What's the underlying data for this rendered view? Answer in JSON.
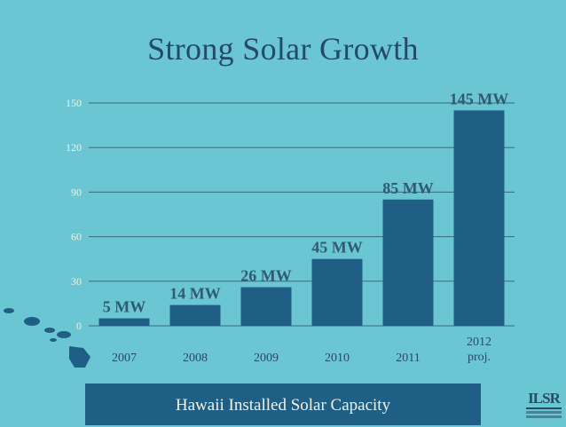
{
  "slide": {
    "title": "Strong Solar Growth",
    "caption": "Hawaii Installed Solar Capacity",
    "logo_text": "ILSR",
    "colors": {
      "background": "#6bc6d3",
      "bar": "#1f5f85",
      "title": "#25496a",
      "grid": "#2f5a72",
      "label": "#f4f0dc",
      "caption_bar": "#1f5f85"
    }
  },
  "chart_data": {
    "type": "bar",
    "title": "Strong Solar Growth",
    "xlabel": "",
    "ylabel": "",
    "categories": [
      "2007",
      "2008",
      "2009",
      "2010",
      "2011",
      "2012 proj."
    ],
    "category_lines": [
      [
        "2007"
      ],
      [
        "2008"
      ],
      [
        "2009"
      ],
      [
        "2010"
      ],
      [
        "2011"
      ],
      [
        "2012",
        "proj."
      ]
    ],
    "values": [
      5,
      14,
      26,
      45,
      85,
      145
    ],
    "data_labels": [
      "5 MW",
      "14 MW",
      "26 MW",
      "45 MW",
      "85 MW",
      "145 MW"
    ],
    "ylim": [
      0,
      150
    ],
    "yticks": [
      0,
      30,
      60,
      90,
      120,
      150
    ],
    "grid": true,
    "units": "MW"
  }
}
